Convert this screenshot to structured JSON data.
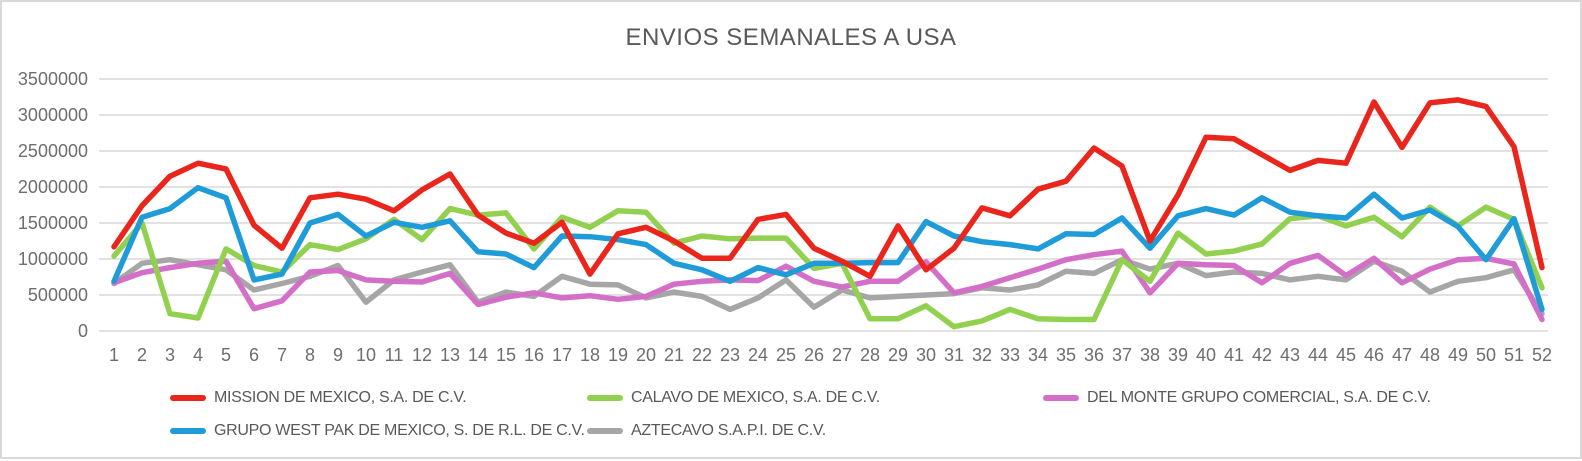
{
  "window": {
    "background": "#ffffff",
    "border_color": "#d9d9d9"
  },
  "chart_data": {
    "type": "line",
    "title": "ENVIOS SEMANALES A USA",
    "xlabel": "",
    "ylabel": "",
    "x": [
      1,
      2,
      3,
      4,
      5,
      6,
      7,
      8,
      9,
      10,
      11,
      12,
      13,
      14,
      15,
      16,
      17,
      18,
      19,
      20,
      21,
      22,
      23,
      24,
      25,
      26,
      27,
      28,
      29,
      30,
      31,
      32,
      33,
      34,
      35,
      36,
      37,
      38,
      39,
      40,
      41,
      42,
      43,
      44,
      45,
      46,
      47,
      48,
      49,
      50,
      51,
      52
    ],
    "ylim": [
      0,
      3500000
    ],
    "yticks": [
      0,
      500000,
      1000000,
      1500000,
      2000000,
      2500000,
      3000000,
      3500000
    ],
    "grid": true,
    "legend_position": "bottom",
    "gridline_color": "#d9d9d9",
    "title_color": "#595959",
    "tick_label_color": "#6e6e6e",
    "z_order": [
      4,
      2,
      1,
      3,
      0
    ],
    "series": [
      {
        "name": "MISSION DE MEXICO, S.A. DE C.V.",
        "color": "#e9251c",
        "values": [
          1170000,
          1740000,
          2150000,
          2330000,
          2250000,
          1470000,
          1150000,
          1850000,
          1900000,
          1830000,
          1670000,
          1960000,
          2180000,
          1610000,
          1360000,
          1220000,
          1510000,
          790000,
          1350000,
          1440000,
          1250000,
          1010000,
          1010000,
          1550000,
          1620000,
          1150000,
          970000,
          760000,
          1460000,
          850000,
          1150000,
          1710000,
          1600000,
          1970000,
          2080000,
          2540000,
          2290000,
          1250000,
          1890000,
          2690000,
          2670000,
          2450000,
          2230000,
          2370000,
          2330000,
          3180000,
          2550000,
          3170000,
          3210000,
          3120000,
          2560000,
          880000
        ]
      },
      {
        "name": "CALAVO DE MEXICO, S.A. DE C.V.",
        "color": "#92d050",
        "values": [
          1040000,
          1500000,
          240000,
          180000,
          1140000,
          910000,
          820000,
          1200000,
          1130000,
          1280000,
          1550000,
          1270000,
          1700000,
          1610000,
          1640000,
          1140000,
          1580000,
          1440000,
          1670000,
          1650000,
          1220000,
          1320000,
          1280000,
          1290000,
          1290000,
          870000,
          940000,
          170000,
          170000,
          350000,
          60000,
          140000,
          300000,
          170000,
          160000,
          160000,
          990000,
          690000,
          1360000,
          1070000,
          1110000,
          1210000,
          1560000,
          1600000,
          1460000,
          1580000,
          1310000,
          1720000,
          1460000,
          1720000,
          1550000,
          600000
        ]
      },
      {
        "name": "DEL MONTE GRUPO COMERCIAL, S.A. DE C.V.",
        "color": "#d46fc8",
        "values": [
          670000,
          810000,
          880000,
          940000,
          970000,
          310000,
          420000,
          820000,
          840000,
          710000,
          690000,
          680000,
          800000,
          370000,
          470000,
          530000,
          460000,
          490000,
          440000,
          480000,
          650000,
          690000,
          710000,
          700000,
          900000,
          690000,
          610000,
          690000,
          690000,
          960000,
          530000,
          620000,
          740000,
          860000,
          990000,
          1060000,
          1110000,
          530000,
          940000,
          920000,
          910000,
          670000,
          940000,
          1050000,
          770000,
          1010000,
          670000,
          860000,
          990000,
          1010000,
          930000,
          160000
        ]
      },
      {
        "name": "GRUPO WEST PAK DE MEXICO, S. DE R.L. DE C.V.",
        "color": "#1f9cd8",
        "values": [
          690000,
          1580000,
          1700000,
          1990000,
          1850000,
          710000,
          790000,
          1500000,
          1620000,
          1320000,
          1510000,
          1440000,
          1530000,
          1100000,
          1070000,
          880000,
          1320000,
          1310000,
          1270000,
          1200000,
          940000,
          850000,
          690000,
          880000,
          780000,
          940000,
          940000,
          950000,
          950000,
          1520000,
          1320000,
          1240000,
          1200000,
          1140000,
          1350000,
          1340000,
          1570000,
          1150000,
          1600000,
          1700000,
          1610000,
          1850000,
          1650000,
          1600000,
          1570000,
          1900000,
          1570000,
          1680000,
          1450000,
          990000,
          1560000,
          300000
        ]
      },
      {
        "name": "AZTECAVO S.A.P.I. DE C.V.",
        "color": "#a6a6a6",
        "values": [
          660000,
          940000,
          990000,
          920000,
          850000,
          570000,
          660000,
          760000,
          910000,
          400000,
          710000,
          820000,
          920000,
          400000,
          540000,
          480000,
          760000,
          650000,
          640000,
          460000,
          540000,
          480000,
          300000,
          460000,
          710000,
          330000,
          570000,
          460000,
          480000,
          500000,
          520000,
          600000,
          570000,
          640000,
          830000,
          800000,
          990000,
          860000,
          940000,
          770000,
          820000,
          800000,
          710000,
          760000,
          710000,
          970000,
          830000,
          540000,
          690000,
          740000,
          850000,
          240000
        ]
      }
    ]
  }
}
